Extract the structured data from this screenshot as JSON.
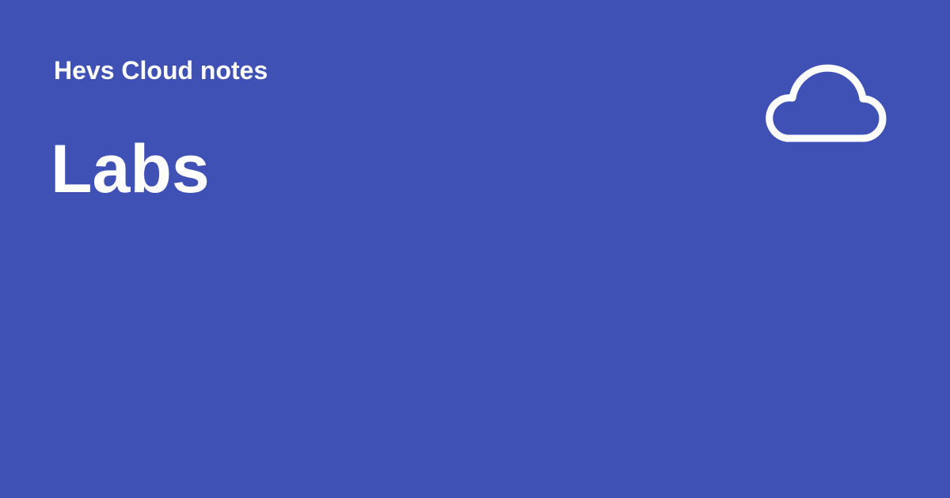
{
  "header": {
    "site_name": "Hevs Cloud notes"
  },
  "main": {
    "title": "Labs"
  },
  "icons": {
    "logo": "cloud-icon"
  },
  "colors": {
    "background": "#3f51b5",
    "text": "#ffffff",
    "icon_stroke": "#ffffff"
  }
}
